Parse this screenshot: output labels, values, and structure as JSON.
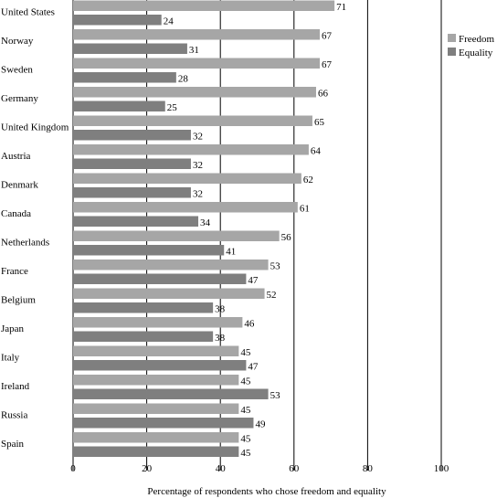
{
  "chart_data": {
    "type": "bar",
    "orientation": "horizontal",
    "categories": [
      "United States",
      "Norway",
      "Sweden",
      "Germany",
      "United Kingdom",
      "Austria",
      "Denmark",
      "Canada",
      "Netherlands",
      "France",
      "Belgium",
      "Japan",
      "Italy",
      "Ireland",
      "Russia",
      "Spain"
    ],
    "series": [
      {
        "name": "Freedom",
        "color": "#a6a6a6",
        "values": [
          71,
          67,
          67,
          66,
          65,
          64,
          62,
          61,
          56,
          53,
          52,
          46,
          45,
          45,
          45,
          45
        ]
      },
      {
        "name": "Equality",
        "color": "#7f7f7f",
        "values": [
          24,
          31,
          28,
          25,
          32,
          32,
          32,
          34,
          41,
          47,
          38,
          38,
          47,
          53,
          49,
          45
        ]
      }
    ],
    "xlabel": "Percentage of respondents who chose freedom and equality",
    "ylabel": "",
    "xlim": [
      0,
      100
    ],
    "xticks": [
      0,
      20,
      40,
      60,
      80,
      100
    ],
    "grid": "vertical",
    "legend": "top-right",
    "data_labels": true
  }
}
